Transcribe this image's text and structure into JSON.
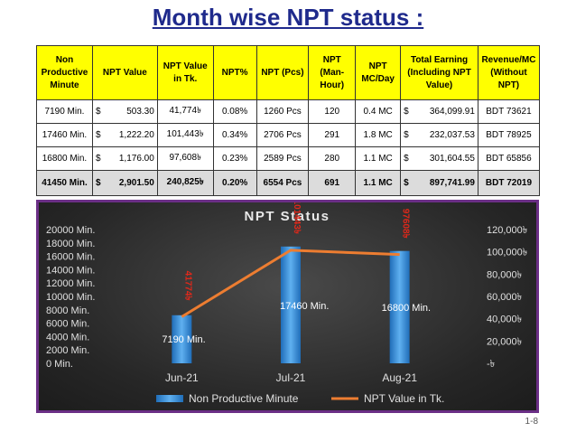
{
  "page": {
    "title": "Month wise NPT status :",
    "slide_number": "1-8"
  },
  "table": {
    "headers": [
      "Non Productive Minute",
      "NPT Value",
      "NPT Value in Tk.",
      "NPT%",
      "NPT (Pcs)",
      "NPT (Man-Hour)",
      "NPT MC/Day",
      "Total Earning (Including NPT Value)",
      "Revenue/MC (Without NPT)"
    ],
    "rows": [
      {
        "minute": "7190 Min.",
        "cur": "$",
        "value": "503.30",
        "tk": "41,774৳",
        "pct": "0.08%",
        "pcs": "1260 Pcs",
        "manhour": "120",
        "mcday": "0.4 MC",
        "cur2": "$",
        "earning": "364,099.91",
        "revenue": "BDT 73621"
      },
      {
        "minute": "17460 Min.",
        "cur": "$",
        "value": "1,222.20",
        "tk": "101,443৳",
        "pct": "0.34%",
        "pcs": "2706 Pcs",
        "manhour": "291",
        "mcday": "1.8 MC",
        "cur2": "$",
        "earning": "232,037.53",
        "revenue": "BDT 78925"
      },
      {
        "minute": "16800 Min.",
        "cur": "$",
        "value": "1,176.00",
        "tk": "97,608৳",
        "pct": "0.23%",
        "pcs": "2589 Pcs",
        "manhour": "280",
        "mcday": "1.1 MC",
        "cur2": "$",
        "earning": "301,604.55",
        "revenue": "BDT 65856"
      }
    ],
    "total": {
      "minute": "41450 Min.",
      "cur": "$",
      "value": "2,901.50",
      "tk": "240,825৳",
      "pct": "0.20%",
      "pcs": "6554 Pcs",
      "manhour": "691",
      "mcday": "1.1 MC",
      "cur2": "$",
      "earning": "897,741.99",
      "revenue": "BDT 72019"
    }
  },
  "chart_data": {
    "type": "bar",
    "title": "NPT Status",
    "categories": [
      "Jun-21",
      "Jul-21",
      "Aug-21"
    ],
    "series": [
      {
        "name": "Non Productive Minute",
        "kind": "bar",
        "axis": "left",
        "values": [
          7190,
          17460,
          16800
        ],
        "labels": [
          "7190 Min.",
          "17460 Min.",
          "16800 Min."
        ],
        "color": "#3d8fd6"
      },
      {
        "name": "NPT Value in Tk.",
        "kind": "line",
        "axis": "right",
        "values": [
          41774,
          101443,
          97608
        ],
        "labels": [
          "41774৳",
          "101443৳",
          "97608৳"
        ],
        "color": "#ed7d31"
      }
    ],
    "left_axis": {
      "min": 0,
      "max": 20000,
      "step": 2000,
      "ticks": [
        "0 Min.",
        "2000 Min.",
        "4000 Min.",
        "6000 Min.",
        "8000 Min.",
        "10000 Min.",
        "12000 Min.",
        "14000 Min.",
        "16000 Min.",
        "18000 Min.",
        "20000 Min."
      ]
    },
    "right_axis": {
      "min": 0,
      "max": 120000,
      "step": 20000,
      "ticks": [
        "-৳",
        "20,000৳",
        "40,000৳",
        "60,000৳",
        "80,000৳",
        "100,000৳",
        "120,000৳"
      ]
    },
    "legend_position": "bottom",
    "grid": false
  }
}
